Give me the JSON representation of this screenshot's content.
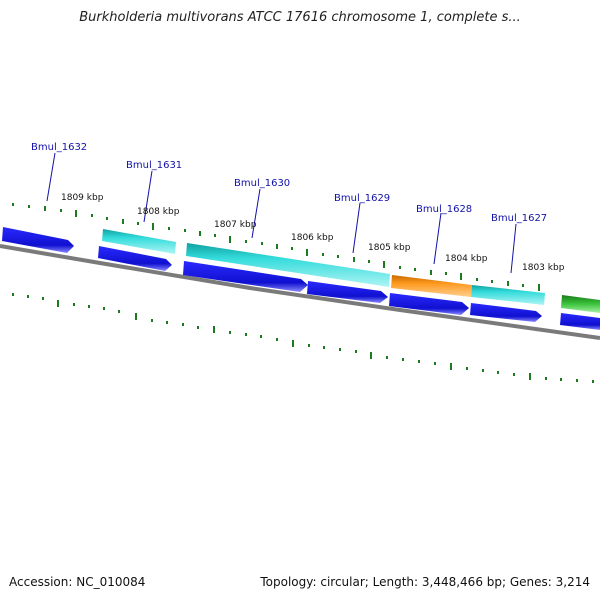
{
  "title": "Burkholderia multivorans ATCC 17616 chromosome 1, complete s...",
  "footer": {
    "accession": "Accession: NC_010084",
    "stats": "Topology: circular; Length: 3,448,466 bp; Genes: 3,214"
  },
  "colors": {
    "cds_forward": "#1a1ae0",
    "rna_band": "#20c8c8",
    "highlight_band": "#f08a10",
    "green_track": "#2eae2e",
    "backbone": "#808080",
    "tick": "#1e7a1e",
    "label": "#1212a8"
  },
  "scale_labels": [
    "1809 kbp",
    "1808 kbp",
    "1807 kbp",
    "1806 kbp",
    "1805 kbp",
    "1804 kbp",
    "1803 kbp"
  ],
  "gene_labels": [
    "Bmul_1632",
    "Bmul_1631",
    "Bmul_1630",
    "Bmul_1629",
    "Bmul_1628",
    "Bmul_1627"
  ]
}
